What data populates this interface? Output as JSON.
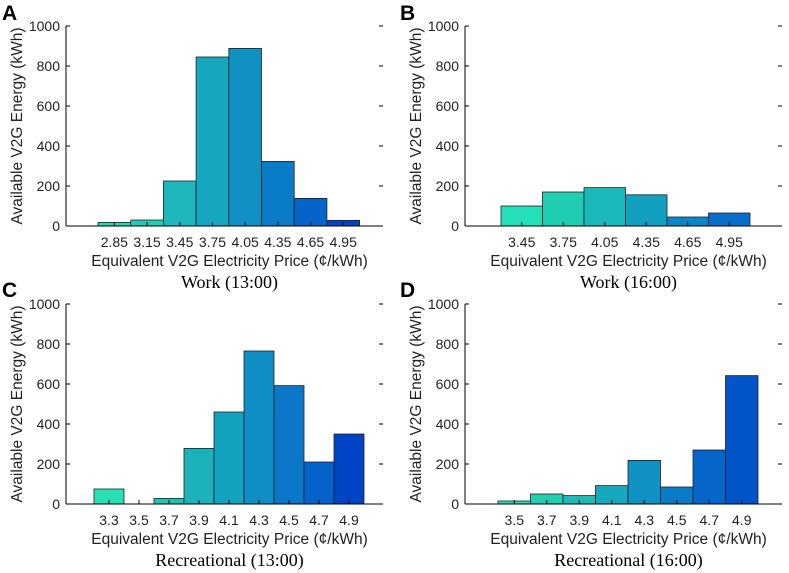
{
  "chart_data": [
    {
      "panel": "A",
      "type": "bar",
      "title": "Work (13:00)",
      "xlabel": "Equivalent V2G Electricity Price (¢/kWh)",
      "ylabel": "Available V2G Energy (kWh)",
      "ylim": [
        0,
        1000
      ],
      "yticks": [
        "0",
        "200",
        "400",
        "600",
        "800",
        "1000"
      ],
      "categories": [
        "2.85",
        "3.15",
        "3.45",
        "3.75",
        "4.05",
        "4.35",
        "4.65",
        "4.95"
      ],
      "values": [
        18,
        30,
        225,
        845,
        888,
        323,
        138,
        28
      ],
      "colors": [
        "#28d7ad",
        "#22cbb1",
        "#1db7bc",
        "#15a6c0",
        "#1091c4",
        "#0a7cc7",
        "#0564c9",
        "#0044c5"
      ]
    },
    {
      "panel": "B",
      "type": "bar",
      "title": "Work (16:00)",
      "xlabel": "Equivalent V2G Electricity Price (¢/kWh)",
      "ylabel": "Available V2G Energy (kWh)",
      "ylim": [
        0,
        1000
      ],
      "yticks": [
        "0",
        "200",
        "400",
        "600",
        "800",
        "1000"
      ],
      "categories": [
        "3.45",
        "3.75",
        "4.05",
        "4.35",
        "4.65",
        "4.95"
      ],
      "values": [
        100,
        170,
        192,
        156,
        45,
        65
      ],
      "colors": [
        "#24e0b8",
        "#1ecdb2",
        "#1ab8b8",
        "#12a0c0",
        "#0a86c6",
        "#066fca"
      ]
    },
    {
      "panel": "C",
      "type": "bar",
      "title": "Recreational (13:00)",
      "xlabel": "Equivalent V2G Electricity Price (¢/kWh)",
      "ylabel": "Available V2G Energy (kWh)",
      "ylim": [
        0,
        1000
      ],
      "yticks": [
        "0",
        "200",
        "400",
        "600",
        "800",
        "1000"
      ],
      "categories": [
        "3.3",
        "3.5",
        "3.7",
        "3.9",
        "4.1",
        "4.3",
        "4.5",
        "4.7",
        "4.9"
      ],
      "values": [
        75,
        0,
        28,
        278,
        460,
        765,
        592,
        210,
        350
      ],
      "colors": [
        "#29dfb4",
        "#25d4b0",
        "#20c4b3",
        "#1bb2bb",
        "#14a2c1",
        "#0f8dc5",
        "#0a77c8",
        "#0462c9",
        "#0043c4"
      ]
    },
    {
      "panel": "D",
      "type": "bar",
      "title": "Recreational (16:00)",
      "xlabel": "Equivalent V2G Electricity Price (¢/kWh)",
      "ylabel": "Available V2G Energy (kWh)",
      "ylim": [
        0,
        1000
      ],
      "yticks": [
        "0",
        "200",
        "400",
        "600",
        "800",
        "1000"
      ],
      "categories": [
        "3.5",
        "3.7",
        "3.9",
        "4.1",
        "4.3",
        "4.5",
        "4.7",
        "4.9"
      ],
      "values": [
        15,
        50,
        42,
        92,
        218,
        85,
        270,
        642
      ],
      "colors": [
        "#28dcb4",
        "#22ceb1",
        "#1dbcb6",
        "#16a8bf",
        "#1092c4",
        "#0a7bc7",
        "#0565c9",
        "#0054c7"
      ]
    }
  ]
}
